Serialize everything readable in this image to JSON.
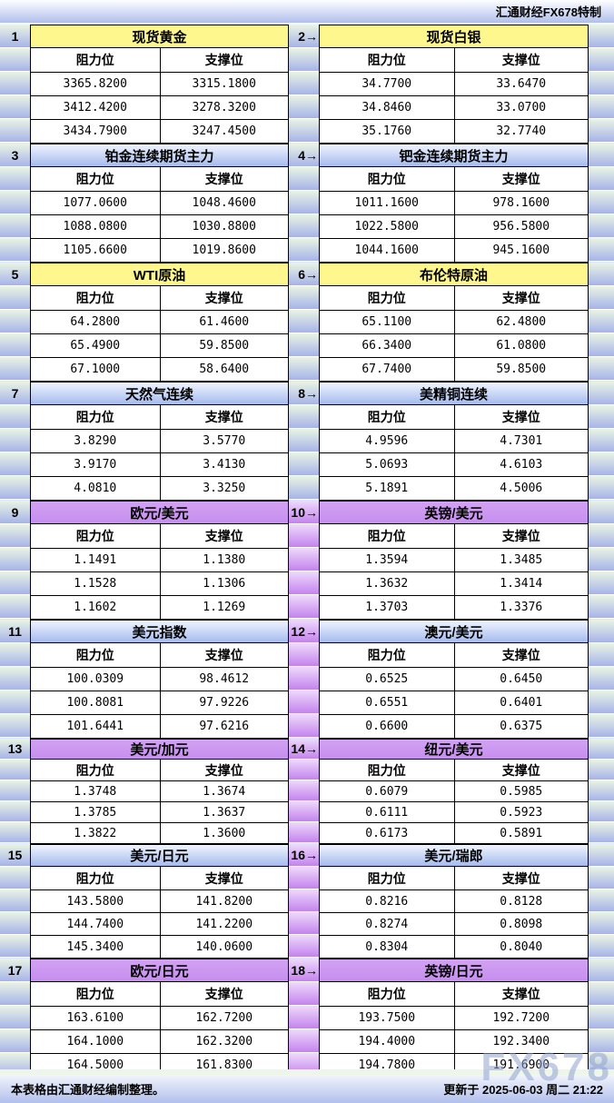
{
  "header": {
    "brand": "汇通财经FX678特制"
  },
  "footer": {
    "note": "本表格由汇通财经编制整理。",
    "updated": "更新于 2025-06-03 周二 21:22"
  },
  "watermark": "FX678",
  "labels": {
    "resistance": "阻力位",
    "support": "支撑位"
  },
  "colors": {
    "yellow_header": "#fdf78d",
    "blue_header_top": "#f0f4fd",
    "blue_header_bottom": "#a5bbee",
    "purple_header_top": "#d2a2f2",
    "purple_header_bottom": "#c68eef",
    "margin_cell_top": "#e9f4e4",
    "margin_cell_bottom": "#a7b3e9",
    "purple_spacer_top": "#eedafb",
    "purple_spacer_bottom": "#c483ee",
    "bar_top": "#fdfeff",
    "bar_bottom": "#b1bfec"
  },
  "sections": [
    {
      "spacer": "green",
      "left": {
        "num": "1",
        "theme": "yellow",
        "title": "现货黄金",
        "rows": [
          [
            "3365.8200",
            "3315.1800"
          ],
          [
            "3412.4200",
            "3278.3200"
          ],
          [
            "3434.7900",
            "3247.4500"
          ]
        ]
      },
      "right": {
        "num": "2→",
        "theme": "yellow",
        "title": "现货白银",
        "rows": [
          [
            "34.7700",
            "33.6470"
          ],
          [
            "34.8460",
            "33.0700"
          ],
          [
            "35.1760",
            "32.7740"
          ]
        ]
      }
    },
    {
      "spacer": "green",
      "left": {
        "num": "3",
        "theme": "blue",
        "title": "铂金连续期货主力",
        "rows": [
          [
            "1077.0600",
            "1048.4600"
          ],
          [
            "1088.0800",
            "1030.8800"
          ],
          [
            "1105.6600",
            "1019.8600"
          ]
        ]
      },
      "right": {
        "num": "4→",
        "theme": "blue",
        "title": "钯金连续期货主力",
        "rows": [
          [
            "1011.1600",
            "978.1600"
          ],
          [
            "1022.5800",
            "956.5800"
          ],
          [
            "1044.1600",
            "945.1600"
          ]
        ]
      }
    },
    {
      "spacer": "green",
      "left": {
        "num": "5",
        "theme": "yellow",
        "title": "WTI原油",
        "rows": [
          [
            "64.2800",
            "61.4600"
          ],
          [
            "65.4900",
            "59.8500"
          ],
          [
            "67.1000",
            "58.6400"
          ]
        ]
      },
      "right": {
        "num": "6→",
        "theme": "yellow",
        "title": "布伦特原油",
        "rows": [
          [
            "65.1100",
            "62.4800"
          ],
          [
            "66.3400",
            "61.0800"
          ],
          [
            "67.7400",
            "59.8500"
          ]
        ]
      }
    },
    {
      "spacer": "green",
      "left": {
        "num": "7",
        "theme": "blue",
        "title": "天然气连续",
        "rows": [
          [
            "3.8290",
            "3.5770"
          ],
          [
            "3.9170",
            "3.4130"
          ],
          [
            "4.0810",
            "3.3250"
          ]
        ]
      },
      "right": {
        "num": "8→",
        "theme": "blue",
        "title": "美精铜连续",
        "rows": [
          [
            "4.9596",
            "4.7301"
          ],
          [
            "5.0693",
            "4.6103"
          ],
          [
            "5.1891",
            "4.5006"
          ]
        ]
      }
    },
    {
      "spacer": "purple",
      "left": {
        "num": "9",
        "theme": "purple",
        "title": "欧元/美元",
        "rows": [
          [
            "1.1491",
            "1.1380"
          ],
          [
            "1.1528",
            "1.1306"
          ],
          [
            "1.1602",
            "1.1269"
          ]
        ]
      },
      "right": {
        "num": "10→",
        "theme": "purple",
        "title": "英镑/美元",
        "rows": [
          [
            "1.3594",
            "1.3485"
          ],
          [
            "1.3632",
            "1.3414"
          ],
          [
            "1.3703",
            "1.3376"
          ]
        ]
      }
    },
    {
      "spacer": "purple",
      "left": {
        "num": "11",
        "theme": "blue",
        "title": "美元指数",
        "rows": [
          [
            "100.0309",
            "98.4612"
          ],
          [
            "100.8081",
            "97.9226"
          ],
          [
            "101.6441",
            "97.6216"
          ]
        ]
      },
      "right": {
        "num": "12→",
        "theme": "blue",
        "title": "澳元/美元",
        "rows": [
          [
            "0.6525",
            "0.6450"
          ],
          [
            "0.6551",
            "0.6401"
          ],
          [
            "0.6600",
            "0.6375"
          ]
        ]
      }
    },
    {
      "spacer": "purple",
      "left": {
        "num": "13",
        "theme": "purple",
        "title": "美元/加元",
        "rows": [
          [
            "1.3748",
            "1.3674"
          ],
          [
            "1.3785",
            "1.3637"
          ],
          [
            "1.3822",
            "1.3600"
          ]
        ]
      },
      "right": {
        "num": "14→",
        "theme": "purple",
        "title": "纽元/美元",
        "rows": [
          [
            "0.6079",
            "0.5985"
          ],
          [
            "0.6111",
            "0.5923"
          ],
          [
            "0.6173",
            "0.5891"
          ]
        ]
      }
    },
    {
      "spacer": "purple",
      "left": {
        "num": "15",
        "theme": "blue",
        "title": "美元/日元",
        "rows": [
          [
            "143.5800",
            "141.8200"
          ],
          [
            "144.7400",
            "141.2200"
          ],
          [
            "145.3400",
            "140.0600"
          ]
        ]
      },
      "right": {
        "num": "16→",
        "theme": "blue",
        "title": "美元/瑞郎",
        "rows": [
          [
            "0.8216",
            "0.8128"
          ],
          [
            "0.8274",
            "0.8098"
          ],
          [
            "0.8304",
            "0.8040"
          ]
        ]
      }
    },
    {
      "spacer": "purple",
      "left": {
        "num": "17",
        "theme": "purple",
        "title": "欧元/日元",
        "rows": [
          [
            "163.6100",
            "162.7200"
          ],
          [
            "164.1000",
            "162.3200"
          ],
          [
            "164.5000",
            "161.8300"
          ]
        ]
      },
      "right": {
        "num": "18→",
        "theme": "purple",
        "title": "英镑/日元",
        "rows": [
          [
            "193.7500",
            "192.7200"
          ],
          [
            "194.4000",
            "192.3400"
          ],
          [
            "194.7800",
            "191.6900"
          ]
        ]
      }
    }
  ]
}
